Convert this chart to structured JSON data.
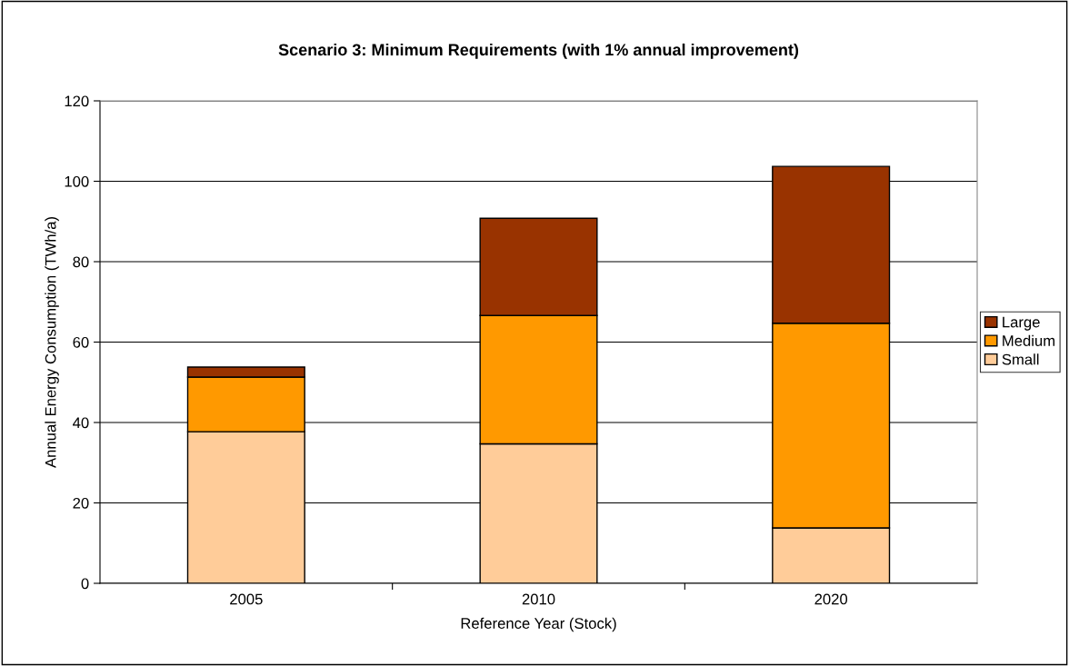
{
  "chart_data": {
    "type": "bar",
    "title": "Scenario 3: Minimum Requirements (with 1% annual improvement)",
    "xlabel": "Reference Year (Stock)",
    "ylabel": "Annual Energy Consumption (TWh/a)",
    "categories": [
      "2005",
      "2010",
      "2020"
    ],
    "stacked": true,
    "series": [
      {
        "name": "Small",
        "color": "#ffcc99",
        "values": [
          37.7,
          34.7,
          13.8
        ]
      },
      {
        "name": "Medium",
        "color": "#ff9900",
        "values": [
          13.6,
          31.9,
          50.9
        ]
      },
      {
        "name": "Large",
        "color": "#993300",
        "values": [
          2.5,
          24.2,
          39.0
        ]
      }
    ],
    "ylim": [
      0,
      120
    ],
    "yticks": [
      0,
      20,
      40,
      60,
      80,
      100,
      120
    ],
    "grid": "y",
    "legend": "right"
  }
}
